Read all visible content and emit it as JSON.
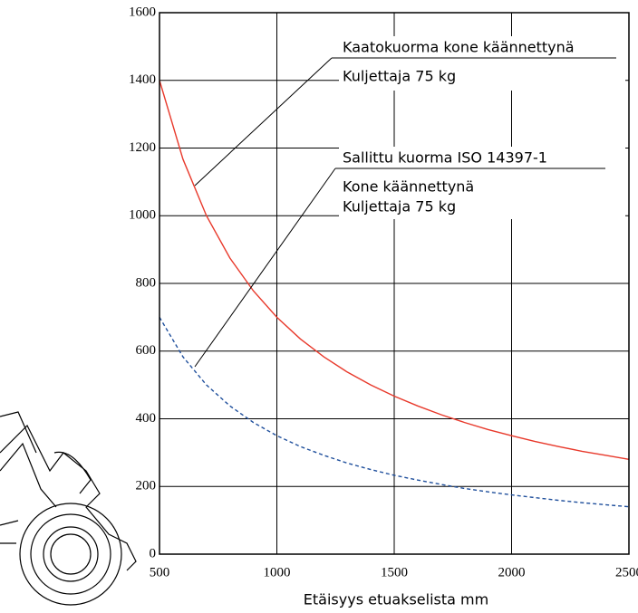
{
  "chart_data": {
    "type": "line",
    "x": [
      500,
      600,
      700,
      800,
      900,
      1000,
      1100,
      1200,
      1300,
      1400,
      1500,
      1600,
      1700,
      1800,
      1900,
      2000,
      2100,
      2200,
      2300,
      2400,
      2500
    ],
    "series": [
      {
        "color": "#e8392b",
        "dashed": false,
        "values": [
          1400,
          1167,
          1000,
          875,
          778,
          700,
          636,
          583,
          538,
          500,
          467,
          438,
          412,
          389,
          368,
          350,
          333,
          318,
          304,
          292,
          280
        ]
      },
      {
        "color": "#1f4f9c",
        "dashed": true,
        "values": [
          700,
          583,
          500,
          438,
          389,
          350,
          318,
          292,
          269,
          250,
          233,
          219,
          206,
          194,
          184,
          175,
          167,
          159,
          152,
          146,
          140
        ]
      }
    ],
    "xlim": [
      500,
      2500
    ],
    "xticks": [
      500,
      1000,
      1500,
      2000,
      2500
    ],
    "ylim": [
      0,
      1600
    ],
    "yticks": [
      0,
      200,
      400,
      600,
      800,
      1000,
      1200,
      1400,
      1600
    ],
    "grid": true,
    "x_label": "Etäisyys etuakselista mm",
    "annotations": [
      {
        "lines": [
          "Kaatokuorma kone käännettynä",
          "Kuljettaja 75 kg"
        ]
      },
      {
        "lines": [
          "Sallittu kuorma ISO 14397-1",
          "Kone käännettynä",
          "Kuljettaja 75 kg"
        ]
      }
    ]
  }
}
